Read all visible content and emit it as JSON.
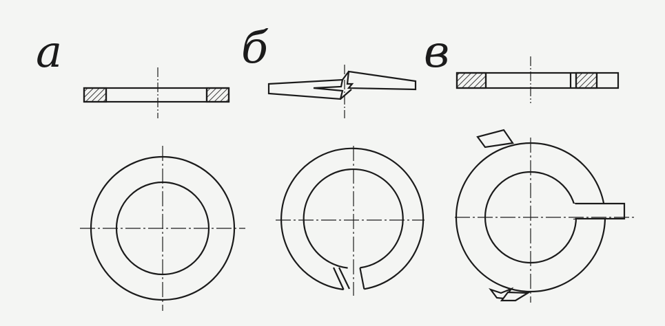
{
  "labels": {
    "a": "а",
    "b": "б",
    "c": "в"
  },
  "colors": {
    "background": "#f4f5f3",
    "line": "#1b1b1b",
    "hatch": "#3a3a3a"
  }
}
